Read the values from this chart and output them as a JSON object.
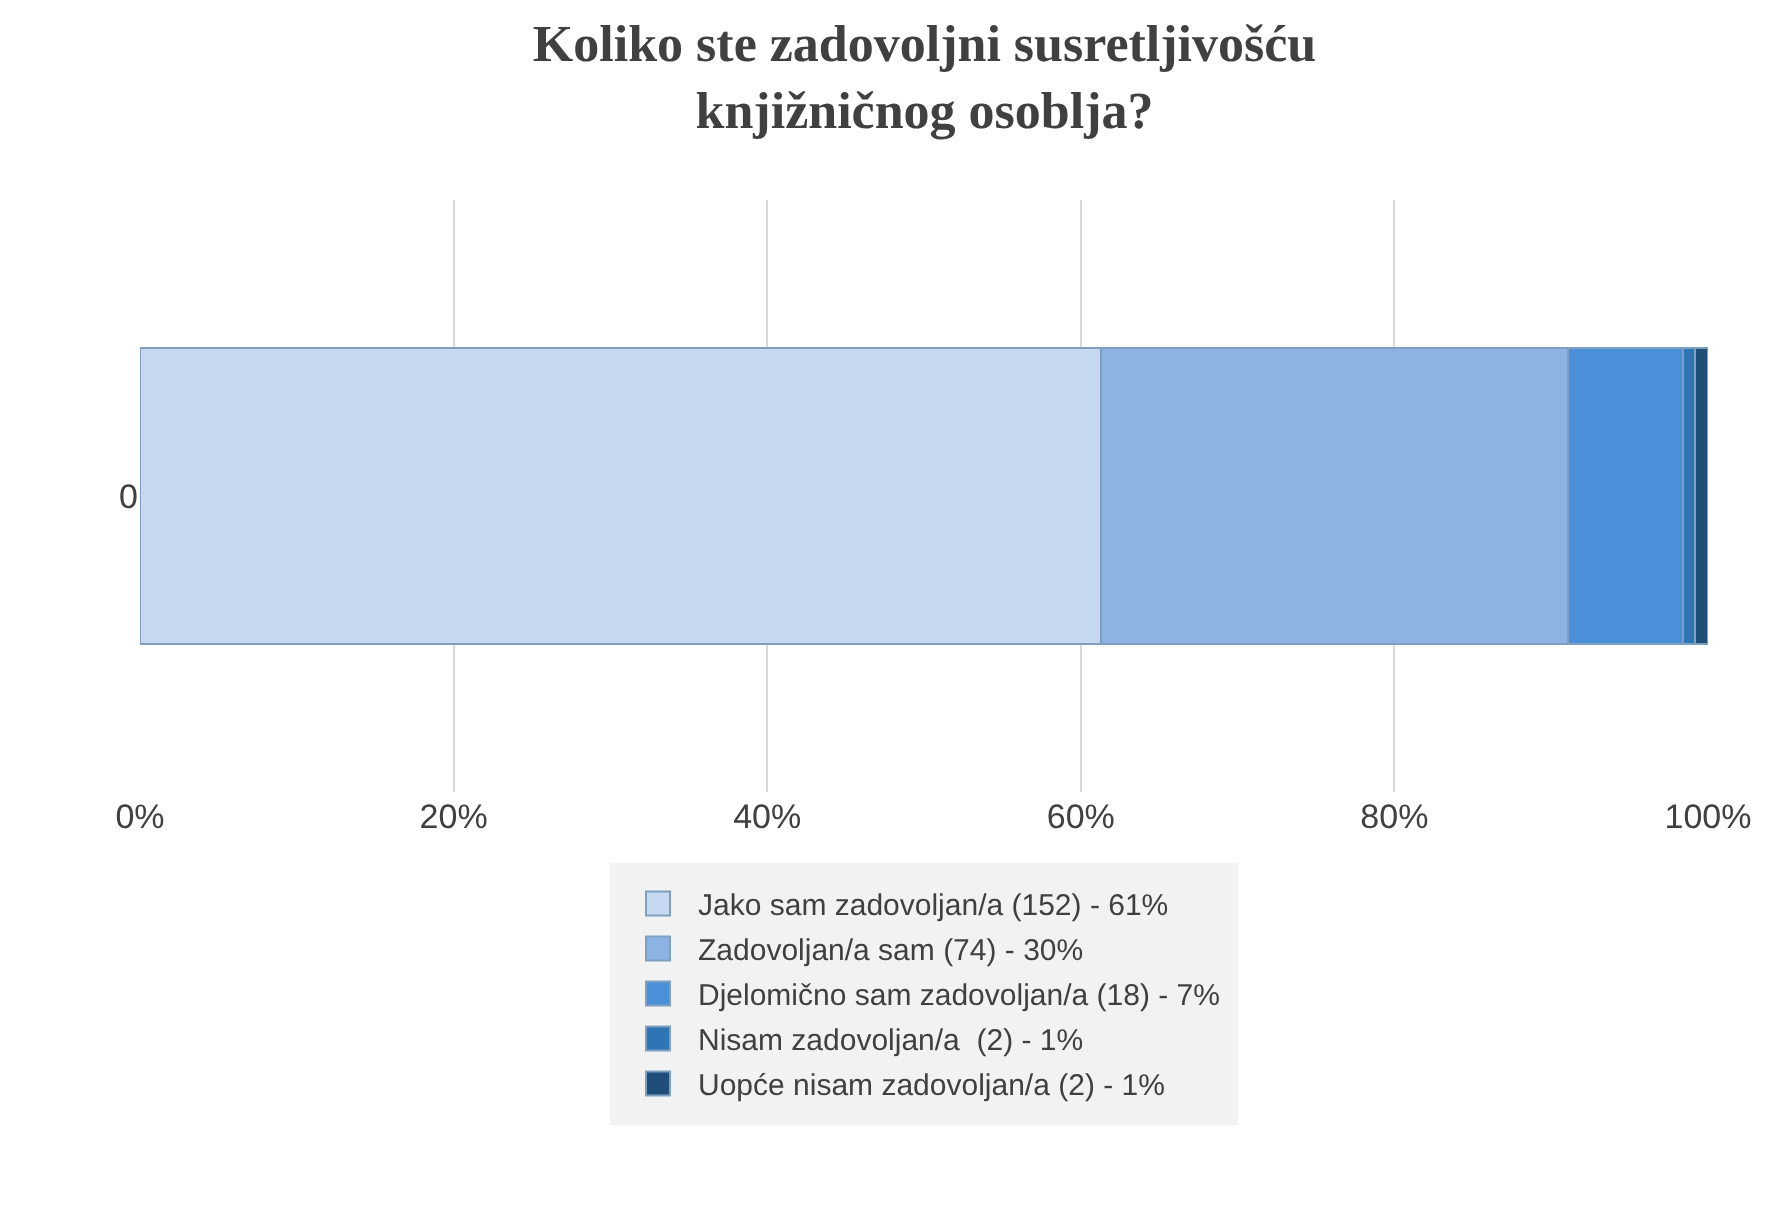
{
  "chart_data": {
    "type": "bar",
    "orientation": "horizontal",
    "stacked": true,
    "title": "Koliko ste zadovoljni susretljivošću knjižničnog osoblja?",
    "categories": [
      "0"
    ],
    "series": [
      {
        "name": "Jako sam zadovoljan/a (152) - 61%",
        "color": "#c6d9f1",
        "values": [
          61.3
        ]
      },
      {
        "name": "Zadovoljan/a sam (74) - 30%",
        "color": "#8db3e2",
        "values": [
          29.8
        ]
      },
      {
        "name": "Djelomično sam zadovoljan/a (18) - 7%",
        "color": "#4a90d9",
        "values": [
          7.3
        ]
      },
      {
        "name": "Nisam zadovoljan/a  (2) - 1%",
        "color": "#2e75b6",
        "values": [
          0.8
        ]
      },
      {
        "name": "Uopće nisam zadovoljan/a (2) - 1%",
        "color": "#1f4e79",
        "values": [
          0.8
        ]
      }
    ],
    "xlim": [
      0,
      100
    ],
    "xticks": [
      {
        "value": 0,
        "label": "0%"
      },
      {
        "value": 20,
        "label": "20%"
      },
      {
        "value": 40,
        "label": "40%"
      },
      {
        "value": 60,
        "label": "60%"
      },
      {
        "value": 80,
        "label": "80%"
      },
      {
        "value": 100,
        "label": "100%"
      }
    ],
    "grid": "x",
    "legend": "bottom"
  }
}
